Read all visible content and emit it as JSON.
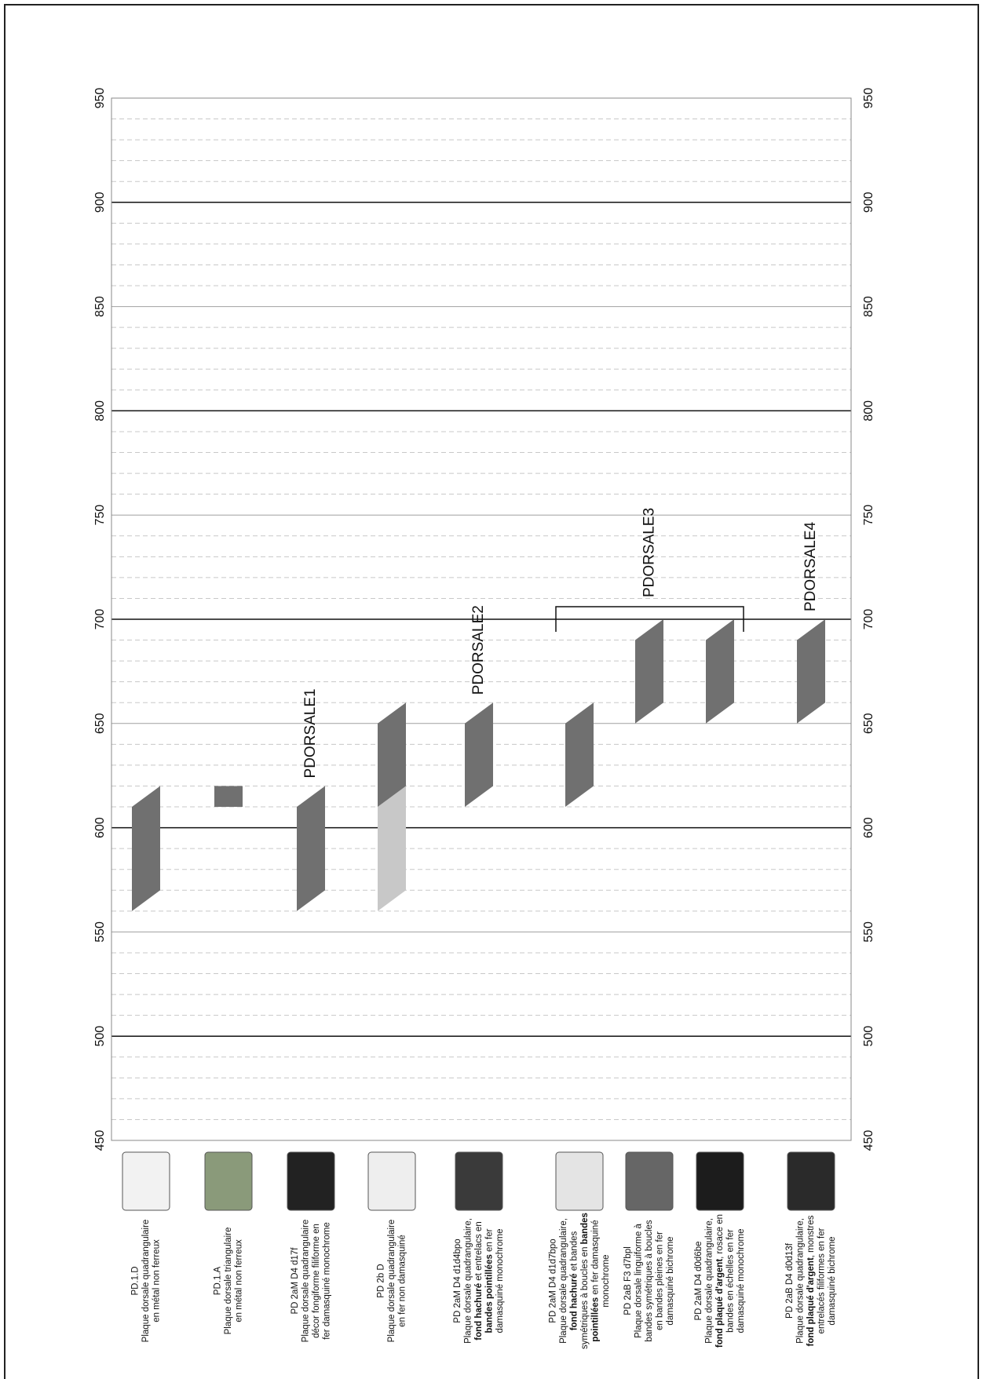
{
  "chart_data": {
    "type": "range",
    "ylim": [
      450,
      950
    ],
    "yticks": [
      450,
      500,
      550,
      600,
      650,
      700,
      750,
      800,
      850,
      900,
      950
    ],
    "major_grid": [
      500,
      600,
      700,
      800,
      900
    ],
    "minor_yticks": [
      460,
      470,
      480,
      490,
      510,
      520,
      530,
      540,
      560,
      570,
      580,
      590,
      610,
      620,
      630,
      640,
      660,
      670,
      680,
      690,
      710,
      720,
      730,
      740,
      760,
      770,
      780,
      790,
      810,
      820,
      830,
      840,
      860,
      870,
      880,
      890,
      910,
      920,
      930,
      940
    ],
    "items": [
      {
        "lines": [
          "PD.1.D",
          "Plaque dorsale quadrangulaire",
          "en métal non ferreux"
        ],
        "ranges": [
          {
            "start": 560,
            "end": 620,
            "color": "#707070"
          }
        ]
      },
      {
        "lines": [
          "PD.1.A",
          "Plaque dorsale triangulaire",
          "en métal non ferreux"
        ],
        "ranges": [
          {
            "start": 610,
            "end": 620,
            "color": "#707070"
          }
        ]
      },
      {
        "lines": [
          "PD 2aM D4 d17f",
          "Plaque dorsale quadrangulaire",
          "décor fongiforme filiforme en",
          "fer damasquiné monochrome"
        ],
        "ranges": [
          {
            "start": 560,
            "end": 620,
            "color": "#707070"
          }
        ]
      },
      {
        "lines": [
          "PD 2b D",
          "Plaque dorsale quadrangulaire",
          "en fer non damasquiné"
        ],
        "ranges": [
          {
            "start": 560,
            "end": 620,
            "color": "#c8c8c8"
          },
          {
            "start": 610,
            "end": 660,
            "color": "#707070"
          }
        ]
      },
      {
        "lines": [
          "PD 2aM D4 d1d4bpo",
          "Plaque dorsale quadrangulaire,",
          [
            {
              "text": "fond hachuré",
              "bold": true
            },
            {
              "text": " et entrelacs en",
              "bold": false
            }
          ],
          [
            {
              "text": "bandes pointillées",
              "bold": true
            },
            {
              "text": " en fer",
              "bold": false
            }
          ],
          "damasquiné monochrome"
        ],
        "ranges": [
          {
            "start": 610,
            "end": 660,
            "color": "#707070"
          }
        ]
      },
      {
        "lines": [
          "PD 2aM D4 d1d7bpo",
          "Plaque dorsale quadrangulaire,",
          [
            {
              "text": "fond hachuré",
              "bold": true
            },
            {
              "text": " et bandes",
              "bold": false
            }
          ],
          [
            {
              "text": "symétriques à boucles en ",
              "bold": false
            },
            {
              "text": "bandes",
              "bold": true
            }
          ],
          [
            {
              "text": "pointillées",
              "bold": true
            },
            {
              "text": " en fer damasquiné",
              "bold": false
            }
          ],
          "monochrome"
        ],
        "ranges": [
          {
            "start": 610,
            "end": 660,
            "color": "#707070"
          }
        ]
      },
      {
        "lines": [
          "PD 2aB F3 d7bpl",
          "Plaque dorsale linguiforme à",
          "bandes symétriques à boucles",
          "en bandes pleines en fer",
          "damasquiné bichrome"
        ],
        "ranges": [
          {
            "start": 650,
            "end": 700,
            "color": "#707070"
          }
        ]
      },
      {
        "lines": [
          "PD 2aM D4 d0d6be",
          "Plaque dorsale quadrangulaire,",
          [
            {
              "text": "fond plaqué d'argent",
              "bold": true
            },
            {
              "text": ", rosace en",
              "bold": false
            }
          ],
          "bandes en échelles en fer",
          "damasquiné monochrome"
        ],
        "ranges": [
          {
            "start": 650,
            "end": 700,
            "color": "#707070"
          }
        ]
      },
      {
        "lines": [
          "PD 2aB D4 d0d13f",
          "Plaque dorsale quadrangulaire,",
          [
            {
              "text": "fond plaqué d'argent",
              "bold": true
            },
            {
              "text": ", monstres",
              "bold": false
            }
          ],
          "entrelacés filiformes en fer",
          "damasquiné bichrome"
        ],
        "ranges": [
          {
            "start": 650,
            "end": 700,
            "color": "#707070"
          }
        ]
      }
    ],
    "groups": [
      {
        "label": "PDORSALE1",
        "items": [
          2
        ],
        "bracket": false
      },
      {
        "label": "PDORSALE2",
        "items": [
          4
        ],
        "bracket": false
      },
      {
        "label": "PDORSALE3",
        "items": [
          5,
          6,
          7
        ],
        "bracket": true
      },
      {
        "label": "PDORSALE4",
        "items": [
          8
        ],
        "bracket": false
      }
    ]
  }
}
